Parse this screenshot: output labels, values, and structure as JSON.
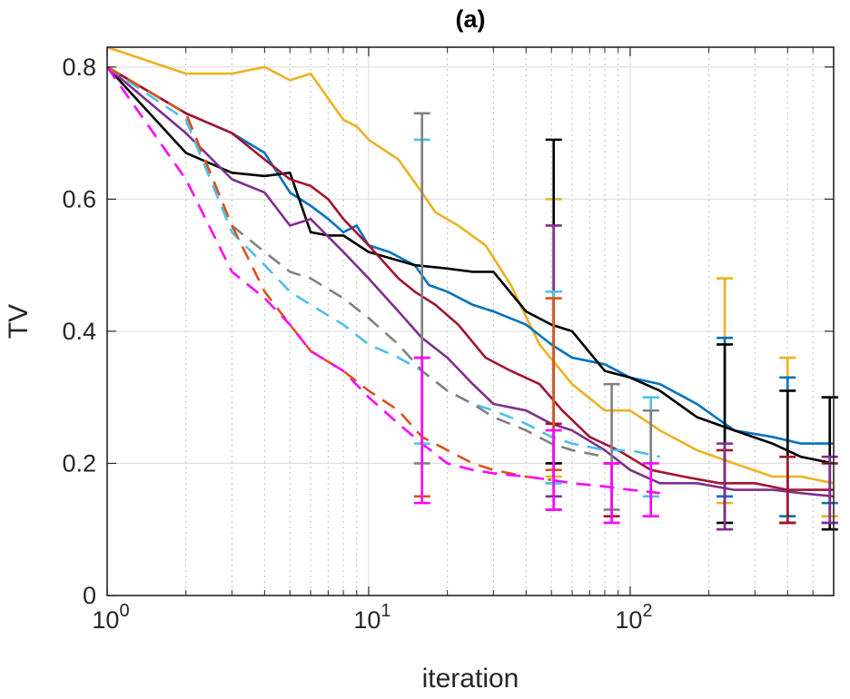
{
  "chart_data": {
    "type": "line",
    "title": "(a)",
    "xlabel": "iteration",
    "ylabel": "TV",
    "xscale": "log",
    "xlim": [
      1,
      600
    ],
    "ylim": [
      0,
      0.83
    ],
    "x_ticks": [
      {
        "value": 1,
        "base": "10",
        "exp": "0"
      },
      {
        "value": 10,
        "base": "10",
        "exp": "1"
      },
      {
        "value": 100,
        "base": "10",
        "exp": "2"
      }
    ],
    "y_ticks": [
      {
        "value": 0,
        "label": "0"
      },
      {
        "value": 0.2,
        "label": "0.2"
      },
      {
        "value": 0.4,
        "label": "0.4"
      },
      {
        "value": 0.6,
        "label": "0.6"
      },
      {
        "value": 0.8,
        "label": "0.8"
      }
    ],
    "grid": true,
    "series": [
      {
        "name": "yellow",
        "color": "#EDB120",
        "dash": "",
        "x": [
          1,
          2,
          3,
          4,
          5,
          6,
          8,
          9,
          10,
          13,
          16,
          18,
          22,
          28,
          35,
          45,
          60,
          80,
          100,
          130,
          180,
          250,
          350,
          450,
          600
        ],
        "y": [
          0.83,
          0.79,
          0.79,
          0.8,
          0.78,
          0.79,
          0.72,
          0.71,
          0.69,
          0.66,
          0.61,
          0.58,
          0.56,
          0.53,
          0.47,
          0.38,
          0.32,
          0.28,
          0.28,
          0.25,
          0.22,
          0.2,
          0.18,
          0.18,
          0.17
        ],
        "errorbars": [
          {
            "x": 51,
            "lo": 0.18,
            "hi": 0.6
          },
          {
            "x": 230,
            "lo": 0.14,
            "hi": 0.48
          },
          {
            "x": 400,
            "lo": 0.12,
            "hi": 0.36
          },
          {
            "x": 580,
            "lo": 0.12,
            "hi": 0.3
          }
        ]
      },
      {
        "name": "blue",
        "color": "#0072BD",
        "dash": "",
        "x": [
          1,
          2,
          3,
          4,
          5,
          6,
          7,
          8,
          9,
          10,
          12,
          15,
          17,
          20,
          25,
          30,
          40,
          50,
          60,
          80,
          100,
          130,
          180,
          250,
          350,
          450,
          600
        ],
        "y": [
          0.8,
          0.73,
          0.7,
          0.67,
          0.61,
          0.59,
          0.57,
          0.55,
          0.56,
          0.53,
          0.52,
          0.5,
          0.47,
          0.46,
          0.44,
          0.43,
          0.41,
          0.38,
          0.36,
          0.35,
          0.33,
          0.32,
          0.29,
          0.25,
          0.24,
          0.23,
          0.23
        ],
        "errorbars": [
          {
            "x": 51,
            "lo": 0.17,
            "hi": 0.46
          },
          {
            "x": 230,
            "lo": 0.15,
            "hi": 0.39
          },
          {
            "x": 400,
            "lo": 0.12,
            "hi": 0.33
          },
          {
            "x": 580,
            "lo": 0.14,
            "hi": 0.3
          }
        ]
      },
      {
        "name": "black",
        "color": "#000000",
        "dash": "",
        "x": [
          1,
          2,
          3,
          4,
          5,
          6,
          7,
          8,
          10,
          15,
          20,
          25,
          30,
          40,
          50,
          60,
          80,
          100,
          130,
          180,
          250,
          350,
          450,
          600
        ],
        "y": [
          0.8,
          0.67,
          0.64,
          0.635,
          0.64,
          0.55,
          0.545,
          0.545,
          0.52,
          0.5,
          0.495,
          0.49,
          0.49,
          0.43,
          0.41,
          0.4,
          0.34,
          0.33,
          0.31,
          0.27,
          0.25,
          0.23,
          0.21,
          0.2
        ],
        "errorbars": [
          {
            "x": 51,
            "lo": 0.2,
            "hi": 0.69
          },
          {
            "x": 230,
            "lo": 0.11,
            "hi": 0.38
          },
          {
            "x": 400,
            "lo": 0.11,
            "hi": 0.31
          },
          {
            "x": 580,
            "lo": 0.1,
            "hi": 0.3
          }
        ]
      },
      {
        "name": "dark red",
        "color": "#A2142F",
        "dash": "",
        "x": [
          1,
          2,
          3,
          4,
          5,
          6,
          7,
          8,
          10,
          13,
          15,
          18,
          22,
          28,
          35,
          45,
          55,
          70,
          90,
          120,
          160,
          220,
          300,
          400,
          600
        ],
        "y": [
          0.8,
          0.73,
          0.7,
          0.66,
          0.63,
          0.62,
          0.6,
          0.57,
          0.53,
          0.48,
          0.46,
          0.44,
          0.41,
          0.36,
          0.34,
          0.32,
          0.28,
          0.24,
          0.22,
          0.19,
          0.18,
          0.17,
          0.17,
          0.16,
          0.16
        ],
        "errorbars": [
          {
            "x": 51,
            "lo": 0.13,
            "hi": 0.26
          },
          {
            "x": 85,
            "lo": 0.12,
            "hi": 0.2
          },
          {
            "x": 230,
            "lo": 0.1,
            "hi": 0.22
          },
          {
            "x": 400,
            "lo": 0.11,
            "hi": 0.21
          },
          {
            "x": 580,
            "lo": 0.11,
            "hi": 0.2
          }
        ]
      },
      {
        "name": "purple",
        "color": "#7E2F8E",
        "dash": "",
        "x": [
          1,
          2,
          3,
          4,
          5,
          6,
          8,
          10,
          13,
          16,
          20,
          25,
          30,
          40,
          50,
          60,
          80,
          100,
          130,
          180,
          250,
          350,
          450,
          600
        ],
        "y": [
          0.8,
          0.7,
          0.63,
          0.61,
          0.56,
          0.57,
          0.52,
          0.48,
          0.43,
          0.39,
          0.36,
          0.32,
          0.29,
          0.28,
          0.26,
          0.25,
          0.22,
          0.19,
          0.17,
          0.17,
          0.16,
          0.16,
          0.155,
          0.15
        ],
        "errorbars": [
          {
            "x": 51,
            "lo": 0.15,
            "hi": 0.56
          },
          {
            "x": 230,
            "lo": 0.1,
            "hi": 0.23
          },
          {
            "x": 580,
            "lo": 0.11,
            "hi": 0.21
          }
        ]
      },
      {
        "name": "light blue",
        "color": "#4DBEEE",
        "dash": "16,10",
        "x": [
          1,
          2,
          3,
          4,
          5,
          6,
          8,
          10,
          13,
          16,
          20,
          25,
          30,
          40,
          50,
          60,
          80,
          100,
          130
        ],
        "y": [
          0.8,
          0.72,
          0.55,
          0.5,
          0.46,
          0.44,
          0.41,
          0.38,
          0.36,
          0.34,
          0.31,
          0.29,
          0.28,
          0.26,
          0.24,
          0.23,
          0.22,
          0.22,
          0.21
        ],
        "errorbars": [
          {
            "x": 16,
            "lo": 0.23,
            "hi": 0.69
          },
          {
            "x": 51,
            "lo": 0.17,
            "hi": 0.46
          },
          {
            "x": 120,
            "lo": 0.15,
            "hi": 0.3
          }
        ]
      },
      {
        "name": "grey",
        "color": "#808080",
        "dash": "16,10",
        "x": [
          1,
          2,
          3,
          4,
          5,
          6,
          8,
          10,
          13,
          16,
          20,
          25,
          30,
          40,
          50,
          60,
          80
        ],
        "y": [
          0.8,
          0.73,
          0.56,
          0.52,
          0.49,
          0.48,
          0.45,
          0.42,
          0.38,
          0.34,
          0.31,
          0.29,
          0.27,
          0.25,
          0.23,
          0.22,
          0.21
        ],
        "errorbars": [
          {
            "x": 16,
            "lo": 0.2,
            "hi": 0.73
          },
          {
            "x": 85,
            "lo": 0.13,
            "hi": 0.32
          },
          {
            "x": 120,
            "lo": 0.12,
            "hi": 0.28
          }
        ]
      },
      {
        "name": "orange",
        "color": "#D95319",
        "dash": "16,10",
        "x": [
          1,
          2,
          3,
          4,
          5,
          6,
          8,
          10,
          13,
          16,
          20,
          25,
          30,
          40,
          50
        ],
        "y": [
          0.8,
          0.73,
          0.56,
          0.46,
          0.41,
          0.37,
          0.34,
          0.31,
          0.28,
          0.24,
          0.22,
          0.2,
          0.19,
          0.18,
          0.175
        ],
        "errorbars": [
          {
            "x": 16,
            "lo": 0.15,
            "hi": 0.36
          },
          {
            "x": 51,
            "lo": 0.19,
            "hi": 0.45
          }
        ]
      },
      {
        "name": "magenta",
        "color": "#FF00FF",
        "dash": "16,10",
        "x": [
          1,
          2,
          3,
          4,
          5,
          6,
          8,
          10,
          13,
          16,
          20,
          25,
          30,
          40,
          50,
          60,
          80,
          100,
          130
        ],
        "y": [
          0.8,
          0.63,
          0.49,
          0.45,
          0.41,
          0.37,
          0.34,
          0.3,
          0.26,
          0.23,
          0.2,
          0.19,
          0.185,
          0.18,
          0.175,
          0.17,
          0.165,
          0.16,
          0.155
        ],
        "errorbars": [
          {
            "x": 16,
            "lo": 0.14,
            "hi": 0.36
          },
          {
            "x": 51,
            "lo": 0.13,
            "hi": 0.25
          },
          {
            "x": 85,
            "lo": 0.11,
            "hi": 0.2
          },
          {
            "x": 120,
            "lo": 0.12,
            "hi": 0.2
          }
        ]
      }
    ]
  }
}
